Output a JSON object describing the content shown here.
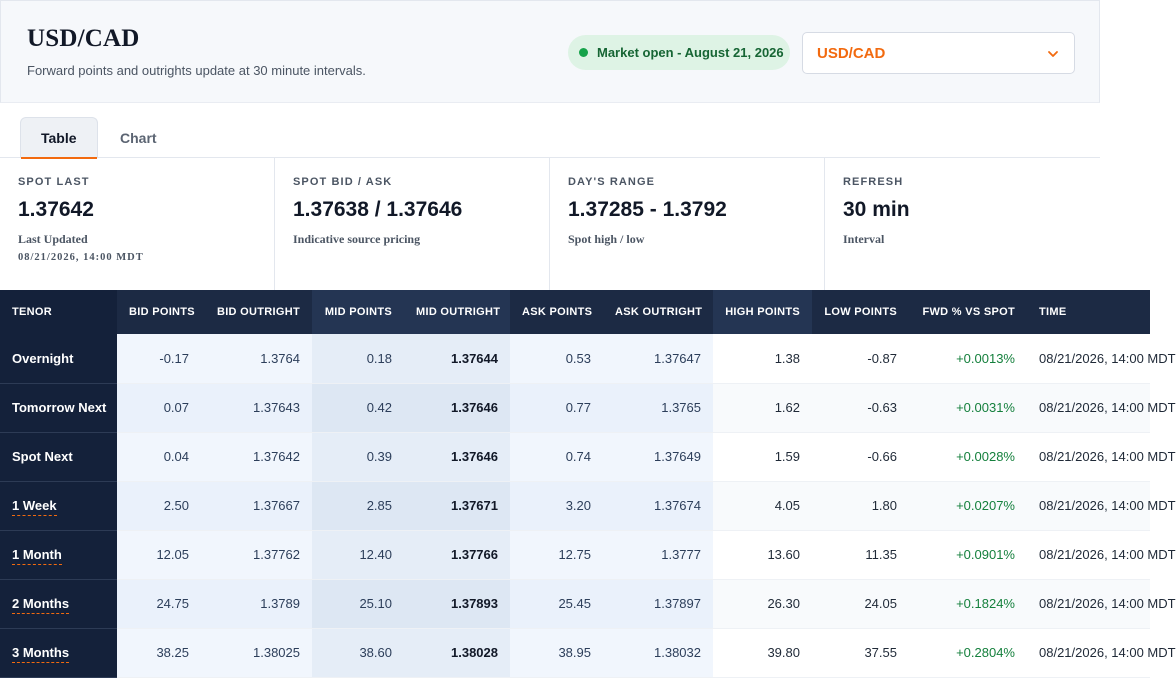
{
  "header": {
    "title": "USD/CAD",
    "subtitle": "Forward points and outrights update at 30 minute intervals.",
    "status": "Market open - August 21, 2026",
    "pair_select_value": "USD/CAD"
  },
  "tabs": [
    {
      "label": "Table",
      "active": true
    },
    {
      "label": "Chart",
      "active": false
    }
  ],
  "cards": [
    {
      "label": "SPOT LAST",
      "value": "1.37642",
      "note": "Last Updated",
      "note2": "08/21/2026, 14:00 MDT"
    },
    {
      "label": "SPOT BID / ASK",
      "value": "1.37638 / 1.37646",
      "note": "Indicative source pricing"
    },
    {
      "label": "DAY'S RANGE",
      "value": "1.37285 - 1.3792",
      "note": "Spot high / low"
    },
    {
      "label": "REFRESH",
      "value": "30 min",
      "note": "Interval"
    }
  ],
  "table": {
    "headers": {
      "tenor": "TENOR",
      "bid_points": "BID POINTS",
      "bid_outright": "BID OUTRIGHT",
      "mid_points": "MID POINTS",
      "mid_outright": "MID OUTRIGHT",
      "ask_points": "ASK POINTS",
      "ask_outright": "ASK OUTRIGHT",
      "high_points": "HIGH POINTS",
      "low_points": "LOW POINTS",
      "fwd_vs_spot": "FWD % VS SPOT",
      "time": "TIME"
    },
    "rows": [
      {
        "tenor": "Overnight",
        "bid_points": "-0.17",
        "bid_outright": "1.3764",
        "mid_points": "0.18",
        "mid_outright": "1.37644",
        "ask_points": "0.53",
        "ask_outright": "1.37647",
        "high_points": "1.38",
        "low_points": "-0.87",
        "fwd_vs_spot": "+0.0013%",
        "time": "08/21/2026, 14:00 MDT",
        "linked": false
      },
      {
        "tenor": "Tomorrow Next",
        "bid_points": "0.07",
        "bid_outright": "1.37643",
        "mid_points": "0.42",
        "mid_outright": "1.37646",
        "ask_points": "0.77",
        "ask_outright": "1.3765",
        "high_points": "1.62",
        "low_points": "-0.63",
        "fwd_vs_spot": "+0.0031%",
        "time": "08/21/2026, 14:00 MDT",
        "linked": false
      },
      {
        "tenor": "Spot Next",
        "bid_points": "0.04",
        "bid_outright": "1.37642",
        "mid_points": "0.39",
        "mid_outright": "1.37646",
        "ask_points": "0.74",
        "ask_outright": "1.37649",
        "high_points": "1.59",
        "low_points": "-0.66",
        "fwd_vs_spot": "+0.0028%",
        "time": "08/21/2026, 14:00 MDT",
        "linked": false
      },
      {
        "tenor": "1 Week",
        "bid_points": "2.50",
        "bid_outright": "1.37667",
        "mid_points": "2.85",
        "mid_outright": "1.37671",
        "ask_points": "3.20",
        "ask_outright": "1.37674",
        "high_points": "4.05",
        "low_points": "1.80",
        "fwd_vs_spot": "+0.0207%",
        "time": "08/21/2026, 14:00 MDT",
        "linked": true
      },
      {
        "tenor": "1 Month",
        "bid_points": "12.05",
        "bid_outright": "1.37762",
        "mid_points": "12.40",
        "mid_outright": "1.37766",
        "ask_points": "12.75",
        "ask_outright": "1.3777",
        "high_points": "13.60",
        "low_points": "11.35",
        "fwd_vs_spot": "+0.0901%",
        "time": "08/21/2026, 14:00 MDT",
        "linked": true
      },
      {
        "tenor": "2 Months",
        "bid_points": "24.75",
        "bid_outright": "1.3789",
        "mid_points": "25.10",
        "mid_outright": "1.37893",
        "ask_points": "25.45",
        "ask_outright": "1.37897",
        "high_points": "26.30",
        "low_points": "24.05",
        "fwd_vs_spot": "+0.1824%",
        "time": "08/21/2026, 14:00 MDT",
        "linked": true
      },
      {
        "tenor": "3 Months",
        "bid_points": "38.25",
        "bid_outright": "1.38025",
        "mid_points": "38.60",
        "mid_outright": "1.38028",
        "ask_points": "38.95",
        "ask_outright": "1.38032",
        "high_points": "39.80",
        "low_points": "37.55",
        "fwd_vs_spot": "+0.2804%",
        "time": "08/21/2026, 14:00 MDT",
        "linked": true
      }
    ]
  },
  "colors": {
    "accent": "#f26a0f",
    "header_navy": "#1c2a44",
    "positive": "#15803d",
    "status_bg": "#def3e5"
  }
}
